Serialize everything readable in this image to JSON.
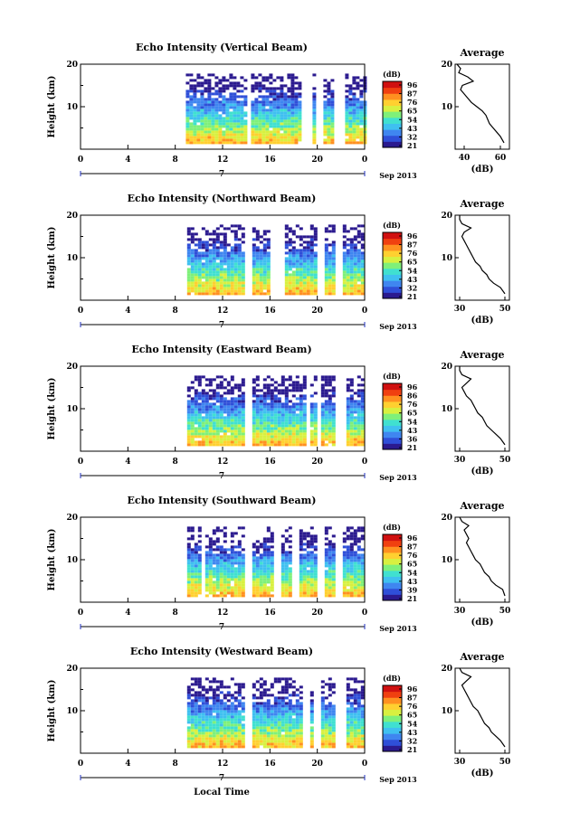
{
  "figure": {
    "xaxis_label": "Local Time",
    "date_label": "Sep 2013",
    "day_marker": "7"
  },
  "chart_data": [
    {
      "type": "heatmap",
      "title": "Echo Intensity (Vertical Beam)",
      "ylabel": "Height (km)",
      "xticks": [
        "0",
        "4",
        "8",
        "12",
        "16",
        "20",
        "0"
      ],
      "yticks": [
        "20",
        "10"
      ],
      "xlim": [
        0,
        24
      ],
      "ylim": [
        0,
        20
      ],
      "data_start_hour": 8.9,
      "gaps_hours": [
        14.1,
        18.9,
        19.2,
        20.1,
        21.5,
        22.0
      ],
      "colorbar_label": "(dB)",
      "colorbar_ticks": [
        "96",
        "87",
        "76",
        "65",
        "54",
        "43",
        "32",
        "21"
      ],
      "profile": {
        "title": "Average",
        "xlabel": "(dB)",
        "xticks": [
          "40",
          "60"
        ],
        "xlim": [
          35,
          65
        ],
        "yticks": [
          "20",
          "10"
        ],
        "heights": [
          1.5,
          3,
          4,
          5,
          6,
          7,
          8,
          9,
          10,
          11,
          12,
          13,
          14,
          15,
          16,
          17,
          18,
          19,
          20
        ],
        "values": [
          62,
          60,
          58,
          56,
          54,
          53,
          52,
          50,
          47,
          44,
          42,
          40,
          38,
          39,
          45,
          42,
          37,
          38,
          36
        ]
      }
    },
    {
      "type": "heatmap",
      "title": "Echo Intensity (Northward Beam)",
      "ylabel": "Height (km)",
      "xticks": [
        "0",
        "4",
        "8",
        "12",
        "16",
        "20",
        "0"
      ],
      "yticks": [
        "20",
        "10"
      ],
      "xlim": [
        0,
        24
      ],
      "ylim": [
        0,
        20
      ],
      "data_start_hour": 9.0,
      "gaps_hours": [
        14.0,
        16.2,
        16.8,
        20.2,
        21.6
      ],
      "colorbar_label": "(dB)",
      "colorbar_ticks": [
        "96",
        "87",
        "76",
        "65",
        "54",
        "43",
        "32",
        "21"
      ],
      "profile": {
        "title": "Average",
        "xlabel": "(dB)",
        "xticks": [
          "30",
          "50"
        ],
        "xlim": [
          28,
          52
        ],
        "yticks": [
          "20",
          "10"
        ],
        "heights": [
          1.5,
          3,
          4,
          5,
          6,
          7,
          8,
          9,
          10,
          11,
          12,
          13,
          14,
          15,
          16,
          17,
          18,
          19,
          20
        ],
        "values": [
          50,
          48,
          45,
          43,
          42,
          40,
          39,
          37,
          36,
          35,
          34,
          33,
          32,
          31,
          32,
          35,
          31,
          30,
          30
        ]
      }
    },
    {
      "type": "heatmap",
      "title": "Echo Intensity (Eastward Beam)",
      "ylabel": "Height (km)",
      "xticks": [
        "0",
        "4",
        "8",
        "12",
        "16",
        "20",
        "0"
      ],
      "yticks": [
        "20",
        "10"
      ],
      "xlim": [
        0,
        24
      ],
      "ylim": [
        0,
        20
      ],
      "data_start_hour": 9.0,
      "gaps_hours": [
        14.1,
        19.1,
        20.0,
        21.6,
        22.0
      ],
      "colorbar_label": "(dB)",
      "colorbar_ticks": [
        "96",
        "86",
        "76",
        "65",
        "54",
        "43",
        "36",
        "21"
      ],
      "profile": {
        "title": "Average",
        "xlabel": "(dB)",
        "xticks": [
          "30",
          "50"
        ],
        "xlim": [
          28,
          52
        ],
        "yticks": [
          "20",
          "10"
        ],
        "heights": [
          1.5,
          3,
          4,
          5,
          6,
          7,
          8,
          9,
          10,
          11,
          12,
          13,
          14,
          15,
          16,
          17,
          18,
          19,
          20
        ],
        "values": [
          50,
          48,
          46,
          44,
          42,
          41,
          40,
          38,
          37,
          36,
          35,
          33,
          32,
          31,
          33,
          35,
          31,
          30,
          30
        ]
      }
    },
    {
      "type": "heatmap",
      "title": "Echo Intensity (Southward Beam)",
      "ylabel": "Height (km)",
      "xticks": [
        "0",
        "4",
        "8",
        "12",
        "16",
        "20",
        "0"
      ],
      "yticks": [
        "20",
        "10"
      ],
      "xlim": [
        0,
        24
      ],
      "ylim": [
        0,
        20
      ],
      "data_start_hour": 9.0,
      "gaps_hours": [
        10.2,
        14.0,
        16.5,
        18.0,
        20.2,
        21.7
      ],
      "colorbar_label": "(dB)",
      "colorbar_ticks": [
        "96",
        "87",
        "76",
        "65",
        "54",
        "43",
        "39",
        "21"
      ],
      "profile": {
        "title": "Average",
        "xlabel": "(dB)",
        "xticks": [
          "30",
          "50"
        ],
        "xlim": [
          28,
          52
        ],
        "yticks": [
          "20",
          "10"
        ],
        "heights": [
          1.5,
          3,
          4,
          5,
          6,
          7,
          8,
          9,
          10,
          11,
          12,
          13,
          14,
          15,
          16,
          17,
          18,
          19,
          20
        ],
        "values": [
          50,
          49,
          46,
          44,
          43,
          41,
          40,
          39,
          37,
          36,
          35,
          34,
          33,
          34,
          33,
          32,
          34,
          31,
          30
        ]
      }
    },
    {
      "type": "heatmap",
      "title": "Echo Intensity (Westward Beam)",
      "ylabel": "Height (km)",
      "xticks": [
        "0",
        "4",
        "8",
        "12",
        "16",
        "20",
        "0"
      ],
      "yticks": [
        "20",
        "10"
      ],
      "xlim": [
        0,
        24
      ],
      "ylim": [
        0,
        20
      ],
      "data_start_hour": 9.0,
      "gaps_hours": [
        14.0,
        19.0,
        19.8,
        21.5,
        22.0
      ],
      "colorbar_label": "(dB)",
      "colorbar_ticks": [
        "96",
        "87",
        "76",
        "65",
        "54",
        "43",
        "32",
        "21"
      ],
      "profile": {
        "title": "Average",
        "xlabel": "(dB)",
        "xticks": [
          "30",
          "50"
        ],
        "xlim": [
          28,
          52
        ],
        "yticks": [
          "20",
          "10"
        ],
        "heights": [
          1.5,
          3,
          4,
          5,
          6,
          7,
          8,
          9,
          10,
          11,
          12,
          13,
          14,
          15,
          16,
          17,
          18,
          19,
          20
        ],
        "values": [
          50,
          48,
          46,
          44,
          43,
          41,
          40,
          39,
          38,
          36,
          35,
          34,
          33,
          32,
          31,
          33,
          35,
          31,
          30
        ]
      }
    }
  ],
  "colormap": [
    "#2b1a8f",
    "#2f4fd8",
    "#3f86f0",
    "#3fc0f0",
    "#40e0d0",
    "#7ff07a",
    "#d8f040",
    "#ffd030",
    "#ff9020",
    "#f04010",
    "#d01010"
  ]
}
